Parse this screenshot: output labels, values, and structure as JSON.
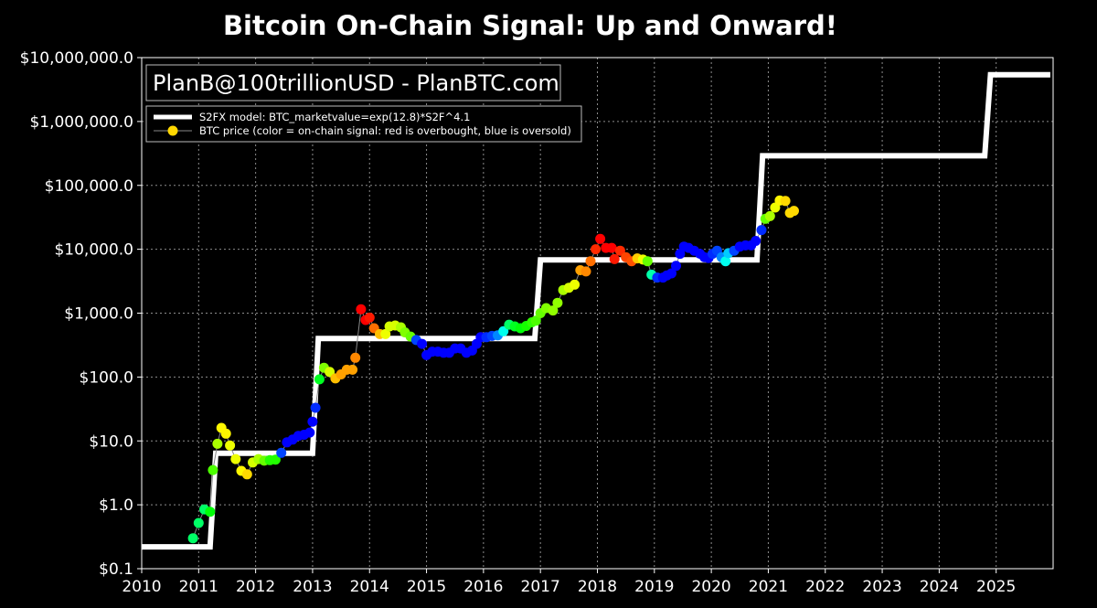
{
  "chart_data": {
    "type": "scatter",
    "title": "Bitcoin On-Chain Signal: Up and Onward!",
    "xlabel": "",
    "ylabel": "",
    "y_scale": "log",
    "xlim": [
      2010,
      2026
    ],
    "ylim": [
      0.1,
      10000000
    ],
    "grid": true,
    "x_ticks": [
      2010,
      2011,
      2012,
      2013,
      2014,
      2015,
      2016,
      2017,
      2018,
      2019,
      2020,
      2021,
      2022,
      2023,
      2024,
      2025
    ],
    "x_tick_labels": [
      "2010",
      "2011",
      "2012",
      "2013",
      "2014",
      "2015",
      "2016",
      "2017",
      "2018",
      "2019",
      "2020",
      "2021",
      "2022",
      "2023",
      "2024",
      "2025"
    ],
    "y_ticks": [
      0.1,
      1,
      10,
      100,
      1000,
      10000,
      100000,
      1000000,
      10000000
    ],
    "y_tick_labels": [
      "$0.1",
      "$1.0",
      "$10.0",
      "$100.0",
      "$1,000.0",
      "$10,000.0",
      "$100,000.0",
      "$1,000,000.0",
      "$10,000,000.0"
    ],
    "annotation": "PlanB@100trillionUSD  -  PlanBTC.com",
    "legend_position": "top-left",
    "legend": [
      {
        "label": "S2FX model: BTC_marketvalue=exp(12.8)*S2F^4.1",
        "style": "line",
        "color": "#ffffff"
      },
      {
        "label": "BTC price (color = on-chain signal: red is overbought, blue is oversold)",
        "style": "marker",
        "color": "#ffd700"
      }
    ],
    "series": [
      {
        "name": "S2FX model: BTC_marketvalue=exp(12.8)*S2F^4.1",
        "type": "step",
        "color": "#ffffff",
        "points": [
          [
            2010.0,
            0.22
          ],
          [
            2011.2,
            0.22
          ],
          [
            2011.3,
            6.4
          ],
          [
            2013.0,
            6.4
          ],
          [
            2013.1,
            400
          ],
          [
            2016.9,
            400
          ],
          [
            2017.0,
            6800
          ],
          [
            2020.8,
            6800
          ],
          [
            2020.9,
            290000
          ],
          [
            2024.8,
            290000
          ],
          [
            2024.9,
            5400000
          ],
          [
            2025.95,
            5400000
          ]
        ]
      },
      {
        "name": "BTC price (color = on-chain signal: red is overbought, blue is oversold)",
        "type": "scatter",
        "points": [
          {
            "x": 2010.9,
            "y": 0.3,
            "c": 0.45
          },
          {
            "x": 2011.0,
            "y": 0.52,
            "c": 0.45
          },
          {
            "x": 2011.1,
            "y": 0.85,
            "c": 0.45
          },
          {
            "x": 2011.2,
            "y": 0.78,
            "c": 0.38
          },
          {
            "x": 2011.25,
            "y": 3.5,
            "c": 0.32
          },
          {
            "x": 2011.33,
            "y": 9,
            "c": 0.25
          },
          {
            "x": 2011.4,
            "y": 16,
            "c": 0.18
          },
          {
            "x": 2011.48,
            "y": 13,
            "c": 0.18
          },
          {
            "x": 2011.55,
            "y": 8.5,
            "c": 0.2
          },
          {
            "x": 2011.65,
            "y": 5.2,
            "c": 0.2
          },
          {
            "x": 2011.75,
            "y": 3.4,
            "c": 0.18
          },
          {
            "x": 2011.85,
            "y": 3.0,
            "c": 0.16
          },
          {
            "x": 2011.95,
            "y": 4.6,
            "c": 0.22
          },
          {
            "x": 2012.05,
            "y": 5.2,
            "c": 0.25
          },
          {
            "x": 2012.15,
            "y": 4.9,
            "c": 0.3
          },
          {
            "x": 2012.25,
            "y": 5.0,
            "c": 0.35
          },
          {
            "x": 2012.35,
            "y": 5.1,
            "c": 0.35
          },
          {
            "x": 2012.45,
            "y": 6.5,
            "c": 0.7
          },
          {
            "x": 2012.55,
            "y": 9.5,
            "c": 0.75
          },
          {
            "x": 2012.65,
            "y": 10.5,
            "c": 0.75
          },
          {
            "x": 2012.75,
            "y": 12,
            "c": 0.75
          },
          {
            "x": 2012.85,
            "y": 12.5,
            "c": 0.75
          },
          {
            "x": 2012.95,
            "y": 13.5,
            "c": 0.75
          },
          {
            "x": 2013.0,
            "y": 20,
            "c": 0.75
          },
          {
            "x": 2013.05,
            "y": 33,
            "c": 0.72
          },
          {
            "x": 2013.12,
            "y": 92,
            "c": 0.4
          },
          {
            "x": 2013.2,
            "y": 140,
            "c": 0.28
          },
          {
            "x": 2013.3,
            "y": 120,
            "c": 0.22
          },
          {
            "x": 2013.4,
            "y": 95,
            "c": 0.14
          },
          {
            "x": 2013.5,
            "y": 110,
            "c": 0.12
          },
          {
            "x": 2013.6,
            "y": 130,
            "c": 0.12
          },
          {
            "x": 2013.7,
            "y": 130,
            "c": 0.12
          },
          {
            "x": 2013.75,
            "y": 200,
            "c": 0.1
          },
          {
            "x": 2013.85,
            "y": 1150,
            "c": 0.0
          },
          {
            "x": 2013.93,
            "y": 780,
            "c": 0.0
          },
          {
            "x": 2014.0,
            "y": 850,
            "c": 0.02
          },
          {
            "x": 2014.08,
            "y": 580,
            "c": 0.08
          },
          {
            "x": 2014.18,
            "y": 470,
            "c": 0.14
          },
          {
            "x": 2014.28,
            "y": 470,
            "c": 0.2
          },
          {
            "x": 2014.35,
            "y": 620,
            "c": 0.22
          },
          {
            "x": 2014.45,
            "y": 640,
            "c": 0.22
          },
          {
            "x": 2014.55,
            "y": 600,
            "c": 0.25
          },
          {
            "x": 2014.62,
            "y": 500,
            "c": 0.28
          },
          {
            "x": 2014.72,
            "y": 430,
            "c": 0.3
          },
          {
            "x": 2014.82,
            "y": 380,
            "c": 0.7
          },
          {
            "x": 2014.92,
            "y": 330,
            "c": 0.75
          },
          {
            "x": 2015.0,
            "y": 220,
            "c": 0.75
          },
          {
            "x": 2015.1,
            "y": 250,
            "c": 0.75
          },
          {
            "x": 2015.2,
            "y": 250,
            "c": 0.75
          },
          {
            "x": 2015.3,
            "y": 240,
            "c": 0.75
          },
          {
            "x": 2015.4,
            "y": 240,
            "c": 0.75
          },
          {
            "x": 2015.5,
            "y": 280,
            "c": 0.75
          },
          {
            "x": 2015.6,
            "y": 280,
            "c": 0.75
          },
          {
            "x": 2015.7,
            "y": 240,
            "c": 0.75
          },
          {
            "x": 2015.8,
            "y": 260,
            "c": 0.75
          },
          {
            "x": 2015.88,
            "y": 330,
            "c": 0.75
          },
          {
            "x": 2015.95,
            "y": 420,
            "c": 0.75
          },
          {
            "x": 2016.05,
            "y": 420,
            "c": 0.72
          },
          {
            "x": 2016.15,
            "y": 440,
            "c": 0.7
          },
          {
            "x": 2016.25,
            "y": 450,
            "c": 0.65
          },
          {
            "x": 2016.35,
            "y": 520,
            "c": 0.55
          },
          {
            "x": 2016.45,
            "y": 660,
            "c": 0.45
          },
          {
            "x": 2016.55,
            "y": 620,
            "c": 0.4
          },
          {
            "x": 2016.65,
            "y": 580,
            "c": 0.38
          },
          {
            "x": 2016.75,
            "y": 630,
            "c": 0.36
          },
          {
            "x": 2016.85,
            "y": 720,
            "c": 0.34
          },
          {
            "x": 2016.92,
            "y": 760,
            "c": 0.32
          },
          {
            "x": 2017.0,
            "y": 1000,
            "c": 0.3
          },
          {
            "x": 2017.1,
            "y": 1200,
            "c": 0.28
          },
          {
            "x": 2017.22,
            "y": 1100,
            "c": 0.27
          },
          {
            "x": 2017.3,
            "y": 1450,
            "c": 0.27
          },
          {
            "x": 2017.4,
            "y": 2300,
            "c": 0.25
          },
          {
            "x": 2017.5,
            "y": 2500,
            "c": 0.22
          },
          {
            "x": 2017.6,
            "y": 2800,
            "c": 0.2
          },
          {
            "x": 2017.7,
            "y": 4700,
            "c": 0.12
          },
          {
            "x": 2017.8,
            "y": 4500,
            "c": 0.1
          },
          {
            "x": 2017.88,
            "y": 6500,
            "c": 0.08
          },
          {
            "x": 2017.97,
            "y": 10000,
            "c": 0.03
          },
          {
            "x": 2018.05,
            "y": 14500,
            "c": 0.0
          },
          {
            "x": 2018.15,
            "y": 10500,
            "c": 0.0
          },
          {
            "x": 2018.25,
            "y": 10500,
            "c": 0.0
          },
          {
            "x": 2018.3,
            "y": 7000,
            "c": 0.02
          },
          {
            "x": 2018.4,
            "y": 9500,
            "c": 0.03
          },
          {
            "x": 2018.5,
            "y": 7500,
            "c": 0.05
          },
          {
            "x": 2018.6,
            "y": 6500,
            "c": 0.06
          },
          {
            "x": 2018.7,
            "y": 7200,
            "c": 0.15
          },
          {
            "x": 2018.8,
            "y": 6900,
            "c": 0.2
          },
          {
            "x": 2018.88,
            "y": 6500,
            "c": 0.3
          },
          {
            "x": 2018.95,
            "y": 4000,
            "c": 0.5
          },
          {
            "x": 2019.05,
            "y": 3600,
            "c": 0.72
          },
          {
            "x": 2019.15,
            "y": 3600,
            "c": 0.75
          },
          {
            "x": 2019.22,
            "y": 3900,
            "c": 0.75
          },
          {
            "x": 2019.3,
            "y": 4200,
            "c": 0.75
          },
          {
            "x": 2019.38,
            "y": 5500,
            "c": 0.75
          },
          {
            "x": 2019.45,
            "y": 8500,
            "c": 0.75
          },
          {
            "x": 2019.52,
            "y": 11000,
            "c": 0.75
          },
          {
            "x": 2019.6,
            "y": 10500,
            "c": 0.75
          },
          {
            "x": 2019.7,
            "y": 9500,
            "c": 0.75
          },
          {
            "x": 2019.8,
            "y": 8500,
            "c": 0.75
          },
          {
            "x": 2019.88,
            "y": 7500,
            "c": 0.75
          },
          {
            "x": 2019.95,
            "y": 7300,
            "c": 0.75
          },
          {
            "x": 2020.02,
            "y": 8500,
            "c": 0.72
          },
          {
            "x": 2020.1,
            "y": 9500,
            "c": 0.7
          },
          {
            "x": 2020.18,
            "y": 7500,
            "c": 0.65
          },
          {
            "x": 2020.25,
            "y": 6500,
            "c": 0.55
          },
          {
            "x": 2020.3,
            "y": 8700,
            "c": 0.6
          },
          {
            "x": 2020.4,
            "y": 9500,
            "c": 0.7
          },
          {
            "x": 2020.5,
            "y": 11000,
            "c": 0.75
          },
          {
            "x": 2020.6,
            "y": 11500,
            "c": 0.75
          },
          {
            "x": 2020.7,
            "y": 11500,
            "c": 0.75
          },
          {
            "x": 2020.78,
            "y": 13500,
            "c": 0.75
          },
          {
            "x": 2020.88,
            "y": 20000,
            "c": 0.72
          },
          {
            "x": 2020.95,
            "y": 30000,
            "c": 0.3
          },
          {
            "x": 2021.03,
            "y": 33000,
            "c": 0.25
          },
          {
            "x": 2021.12,
            "y": 45000,
            "c": 0.2
          },
          {
            "x": 2021.2,
            "y": 58000,
            "c": 0.18
          },
          {
            "x": 2021.3,
            "y": 57000,
            "c": 0.16
          },
          {
            "x": 2021.38,
            "y": 37000,
            "c": 0.16
          },
          {
            "x": 2021.45,
            "y": 40000,
            "c": 0.16
          }
        ]
      }
    ]
  }
}
